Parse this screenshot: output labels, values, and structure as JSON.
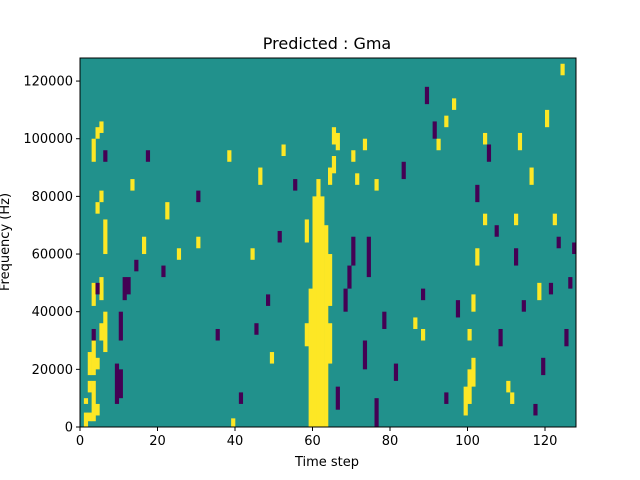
{
  "chart_data": {
    "type": "heatmap",
    "title": "Predicted : Gma",
    "xlabel": "Time step",
    "ylabel": "Frequency (Hz)",
    "xlim": [
      0,
      128
    ],
    "ylim": [
      0,
      128000
    ],
    "x_ticks": [
      0,
      20,
      40,
      60,
      80,
      100,
      120
    ],
    "y_ticks": [
      0,
      20000,
      40000,
      60000,
      80000,
      100000,
      120000
    ],
    "x_tick_labels": [
      "0",
      "20",
      "40",
      "60",
      "80",
      "100",
      "120"
    ],
    "y_tick_labels": [
      "0",
      "20000",
      "40000",
      "60000",
      "80000",
      "100000",
      "120000"
    ],
    "colormap": "viridis",
    "grid": false,
    "colors": {
      "background": "#21918c",
      "high": "#fde725",
      "low": "#440154"
    },
    "rows": 128,
    "cols": 128,
    "value_levels": {
      "low": 0,
      "mid": 1,
      "high": 2
    },
    "high_cells": [
      [
        1,
        0,
        5
      ],
      [
        1,
        8,
        10
      ],
      [
        2,
        2,
        5
      ],
      [
        2,
        12,
        16
      ],
      [
        2,
        18,
        26
      ],
      [
        3,
        2,
        16
      ],
      [
        3,
        18,
        30
      ],
      [
        3,
        42,
        50
      ],
      [
        3,
        92,
        100
      ],
      [
        4,
        4,
        8
      ],
      [
        4,
        20,
        24
      ],
      [
        4,
        74,
        78
      ],
      [
        4,
        100,
        104
      ],
      [
        5,
        30,
        36
      ],
      [
        5,
        44,
        52
      ],
      [
        5,
        78,
        82
      ],
      [
        5,
        102,
        106
      ],
      [
        6,
        26,
        40
      ],
      [
        6,
        60,
        72
      ],
      [
        39,
        0,
        3
      ],
      [
        49,
        22,
        26
      ],
      [
        58,
        28,
        36
      ],
      [
        58,
        64,
        72
      ],
      [
        59,
        0,
        48
      ],
      [
        60,
        0,
        80
      ],
      [
        61,
        0,
        86
      ],
      [
        62,
        0,
        80
      ],
      [
        63,
        0,
        70
      ],
      [
        64,
        22,
        36
      ],
      [
        64,
        42,
        60
      ],
      [
        64,
        84,
        90
      ],
      [
        65,
        88,
        94
      ],
      [
        65,
        98,
        104
      ],
      [
        66,
        96,
        102
      ],
      [
        99,
        4,
        14
      ],
      [
        100,
        8,
        20
      ],
      [
        101,
        14,
        24
      ],
      [
        100,
        30,
        34
      ],
      [
        101,
        40,
        46
      ],
      [
        102,
        56,
        62
      ],
      [
        104,
        98,
        102
      ],
      [
        110,
        12,
        16
      ],
      [
        111,
        8,
        12
      ],
      [
        112,
        70,
        74
      ],
      [
        113,
        96,
        102
      ],
      [
        13,
        82,
        86
      ],
      [
        16,
        60,
        66
      ],
      [
        22,
        72,
        78
      ],
      [
        25,
        58,
        62
      ],
      [
        30,
        62,
        66
      ],
      [
        38,
        92,
        96
      ],
      [
        44,
        58,
        62
      ],
      [
        46,
        84,
        90
      ],
      [
        52,
        94,
        98
      ],
      [
        70,
        92,
        96
      ],
      [
        71,
        84,
        88
      ],
      [
        73,
        96,
        100
      ],
      [
        76,
        82,
        86
      ],
      [
        86,
        34,
        38
      ],
      [
        88,
        30,
        34
      ],
      [
        92,
        96,
        100
      ],
      [
        94,
        104,
        108
      ],
      [
        96,
        110,
        114
      ],
      [
        104,
        70,
        74
      ],
      [
        116,
        84,
        90
      ],
      [
        118,
        44,
        50
      ],
      [
        120,
        104,
        110
      ],
      [
        122,
        70,
        74
      ],
      [
        124,
        122,
        126
      ]
    ],
    "low_cells": [
      [
        9,
        8,
        22
      ],
      [
        10,
        10,
        20
      ],
      [
        10,
        30,
        40
      ],
      [
        11,
        44,
        52
      ],
      [
        3,
        30,
        34
      ],
      [
        4,
        46,
        50
      ],
      [
        6,
        92,
        96
      ],
      [
        12,
        46,
        52
      ],
      [
        14,
        54,
        58
      ],
      [
        17,
        92,
        96
      ],
      [
        21,
        52,
        56
      ],
      [
        30,
        78,
        82
      ],
      [
        35,
        30,
        34
      ],
      [
        41,
        8,
        12
      ],
      [
        45,
        32,
        36
      ],
      [
        48,
        42,
        46
      ],
      [
        51,
        64,
        68
      ],
      [
        55,
        82,
        86
      ],
      [
        66,
        6,
        14
      ],
      [
        68,
        40,
        48
      ],
      [
        69,
        48,
        56
      ],
      [
        70,
        56,
        66
      ],
      [
        73,
        20,
        30
      ],
      [
        74,
        52,
        66
      ],
      [
        76,
        0,
        10
      ],
      [
        78,
        34,
        40
      ],
      [
        81,
        16,
        22
      ],
      [
        83,
        86,
        92
      ],
      [
        88,
        44,
        48
      ],
      [
        89,
        112,
        118
      ],
      [
        91,
        100,
        106
      ],
      [
        94,
        8,
        12
      ],
      [
        97,
        38,
        44
      ],
      [
        102,
        78,
        84
      ],
      [
        105,
        92,
        98
      ],
      [
        108,
        28,
        34
      ],
      [
        112,
        56,
        62
      ],
      [
        117,
        4,
        8
      ],
      [
        119,
        18,
        24
      ],
      [
        121,
        46,
        50
      ],
      [
        123,
        62,
        66
      ],
      [
        125,
        28,
        34
      ],
      [
        127,
        60,
        64
      ],
      [
        126,
        48,
        52
      ],
      [
        114,
        40,
        44
      ],
      [
        107,
        66,
        70
      ]
    ]
  }
}
